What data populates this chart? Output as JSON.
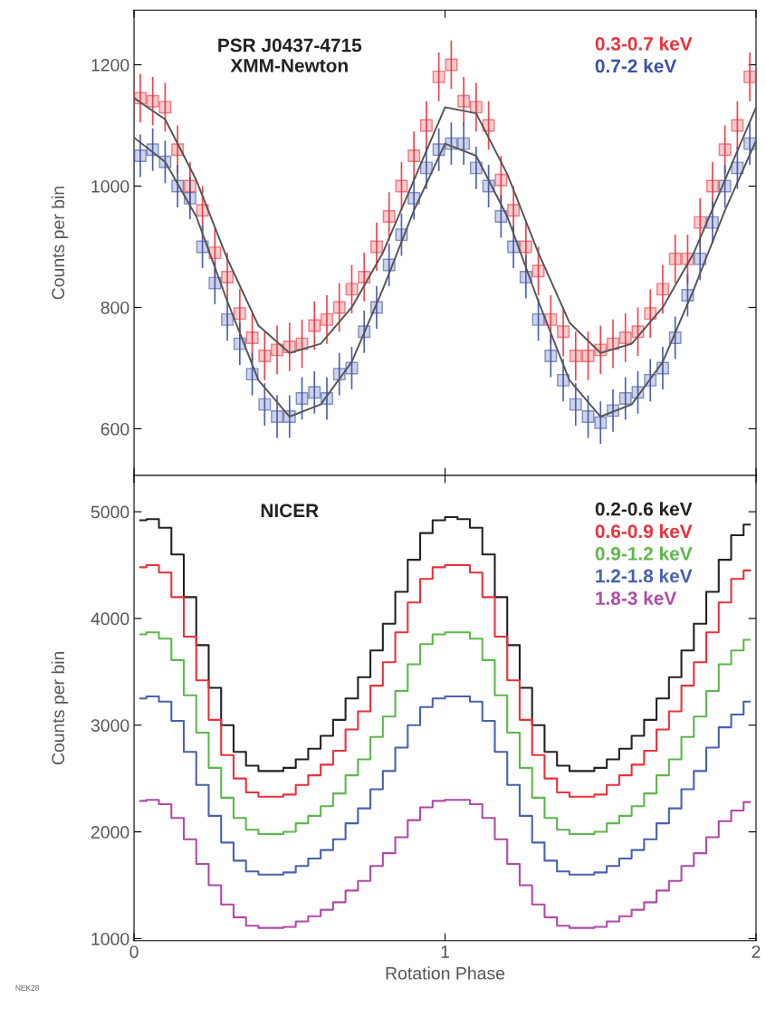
{
  "chart_data": [
    {
      "type": "scatter",
      "ylabel": "Counts per bin",
      "xlim": [
        0,
        2
      ],
      "ylim": [
        523,
        1290
      ],
      "xticks": [
        0,
        1,
        2
      ],
      "yticks": [
        600,
        800,
        1000,
        1200
      ],
      "tick_labels": "y",
      "grid": false,
      "legend": "top right",
      "annotations": [
        "PSR J0437-4715\nXMM-Newton"
      ],
      "series": [
        {
          "name": "0.3-0.7 keV",
          "color": "#e8323c",
          "marker": "square",
          "x": [
            0.02,
            0.06,
            0.1,
            0.14,
            0.18,
            0.22,
            0.26,
            0.3,
            0.34,
            0.38,
            0.42,
            0.46,
            0.5,
            0.54,
            0.58,
            0.62,
            0.66,
            0.7,
            0.74,
            0.78,
            0.82,
            0.86,
            0.9,
            0.94,
            0.98,
            1.02,
            1.06,
            1.1,
            1.14,
            1.18,
            1.22,
            1.26,
            1.3,
            1.34,
            1.38,
            1.42,
            1.46,
            1.5,
            1.54,
            1.58,
            1.62,
            1.66,
            1.7,
            1.74,
            1.78,
            1.82,
            1.86,
            1.9,
            1.94,
            1.98
          ],
          "values": [
            1145,
            1140,
            1130,
            1060,
            1000,
            960,
            890,
            850,
            790,
            750,
            720,
            730,
            735,
            740,
            770,
            780,
            800,
            830,
            850,
            900,
            950,
            1000,
            1050,
            1100,
            1180,
            1200,
            1140,
            1130,
            1100,
            1010,
            960,
            900,
            860,
            780,
            760,
            720,
            720,
            730,
            740,
            750,
            760,
            790,
            830,
            880,
            880,
            940,
            1000,
            1060,
            1100,
            1180
          ],
          "errors": [
            40,
            40,
            40,
            40,
            40,
            40,
            40,
            40,
            40,
            40,
            40,
            40,
            40,
            40,
            40,
            40,
            40,
            40,
            40,
            40,
            40,
            40,
            40,
            40,
            40,
            40,
            40,
            40,
            40,
            40,
            40,
            40,
            40,
            40,
            40,
            40,
            40,
            40,
            40,
            40,
            40,
            40,
            40,
            40,
            40,
            40,
            40,
            40,
            40,
            40
          ]
        },
        {
          "name": "0.7-2 keV",
          "color": "#3c50a8",
          "marker": "square",
          "x": [
            0.02,
            0.06,
            0.1,
            0.14,
            0.18,
            0.22,
            0.26,
            0.3,
            0.34,
            0.38,
            0.42,
            0.46,
            0.5,
            0.54,
            0.58,
            0.62,
            0.66,
            0.7,
            0.74,
            0.78,
            0.82,
            0.86,
            0.9,
            0.94,
            0.98,
            1.02,
            1.06,
            1.1,
            1.14,
            1.18,
            1.22,
            1.26,
            1.3,
            1.34,
            1.38,
            1.42,
            1.46,
            1.5,
            1.54,
            1.58,
            1.62,
            1.66,
            1.7,
            1.74,
            1.78,
            1.82,
            1.86,
            1.9,
            1.94,
            1.98
          ],
          "values": [
            1050,
            1060,
            1040,
            1000,
            980,
            900,
            840,
            780,
            740,
            690,
            640,
            620,
            620,
            650,
            660,
            650,
            690,
            700,
            760,
            800,
            870,
            920,
            980,
            1030,
            1060,
            1070,
            1070,
            1030,
            1000,
            950,
            900,
            850,
            780,
            720,
            680,
            640,
            620,
            610,
            630,
            650,
            660,
            680,
            700,
            750,
            820,
            880,
            940,
            1000,
            1030,
            1070
          ],
          "errors": [
            35,
            35,
            35,
            35,
            35,
            35,
            35,
            35,
            35,
            35,
            35,
            35,
            35,
            35,
            35,
            35,
            35,
            35,
            35,
            35,
            35,
            35,
            35,
            35,
            35,
            35,
            35,
            35,
            35,
            35,
            35,
            35,
            35,
            35,
            35,
            35,
            35,
            35,
            35,
            35,
            35,
            35,
            35,
            35,
            35,
            35,
            35,
            35,
            35,
            35
          ]
        },
        {
          "type": "line",
          "color": "#555555",
          "x": [
            0,
            0.1,
            0.2,
            0.3,
            0.4,
            0.5,
            0.6,
            0.7,
            0.8,
            0.9,
            1.0,
            1.1,
            1.2,
            1.3,
            1.4,
            1.5,
            1.6,
            1.7,
            1.8,
            1.9,
            2.0
          ],
          "values": [
            1145,
            1110,
            1010,
            880,
            770,
            725,
            740,
            800,
            890,
            1010,
            1130,
            1120,
            1020,
            890,
            775,
            725,
            740,
            800,
            890,
            1010,
            1130
          ]
        },
        {
          "type": "line",
          "color": "#555555",
          "x": [
            0,
            0.1,
            0.2,
            0.3,
            0.4,
            0.5,
            0.6,
            0.7,
            0.8,
            0.9,
            1.0,
            1.1,
            1.2,
            1.3,
            1.4,
            1.5,
            1.6,
            1.7,
            1.8,
            1.9,
            2.0
          ],
          "values": [
            1080,
            1040,
            950,
            810,
            680,
            620,
            640,
            710,
            830,
            960,
            1070,
            1050,
            950,
            810,
            680,
            620,
            640,
            710,
            830,
            960,
            1075
          ]
        }
      ]
    },
    {
      "type": "step",
      "xlabel": "Rotation Phase",
      "ylabel": "Counts per bin",
      "xlim": [
        0,
        2
      ],
      "ylim": [
        980,
        5340
      ],
      "xticks": [
        0,
        1,
        2
      ],
      "yticks": [
        1000,
        2000,
        3000,
        4000,
        5000
      ],
      "grid": false,
      "legend": "top right",
      "annotations": [
        "NICER",
        "NEK28"
      ],
      "x": [
        0.02,
        0.06,
        0.1,
        0.14,
        0.18,
        0.22,
        0.26,
        0.3,
        0.34,
        0.38,
        0.42,
        0.46,
        0.5,
        0.54,
        0.58,
        0.62,
        0.66,
        0.7,
        0.74,
        0.78,
        0.82,
        0.86,
        0.9,
        0.94,
        0.98,
        1.02,
        1.06,
        1.1,
        1.14,
        1.18,
        1.22,
        1.26,
        1.3,
        1.34,
        1.38,
        1.42,
        1.46,
        1.5,
        1.54,
        1.58,
        1.62,
        1.66,
        1.7,
        1.74,
        1.78,
        1.82,
        1.86,
        1.9,
        1.94,
        1.98
      ],
      "series": [
        {
          "name": "0.2-0.6 keV",
          "color": "#222222",
          "values": [
            4920,
            4930,
            4850,
            4600,
            4200,
            3750,
            3350,
            3000,
            2750,
            2620,
            2570,
            2570,
            2600,
            2680,
            2780,
            2900,
            3050,
            3250,
            3450,
            3700,
            3950,
            4250,
            4550,
            4800,
            4920,
            4950,
            4930,
            4850,
            4600,
            4200,
            3750,
            3350,
            3000,
            2750,
            2620,
            2570,
            2570,
            2600,
            2680,
            2780,
            2900,
            3050,
            3250,
            3450,
            3700,
            3950,
            4250,
            4550,
            4780,
            4880
          ]
        },
        {
          "name": "0.6-0.9 keV",
          "color": "#e8323c",
          "values": [
            4480,
            4500,
            4430,
            4200,
            3830,
            3420,
            3050,
            2720,
            2500,
            2370,
            2330,
            2330,
            2350,
            2440,
            2530,
            2630,
            2760,
            2960,
            3130,
            3370,
            3590,
            3870,
            4150,
            4370,
            4480,
            4500,
            4500,
            4430,
            4200,
            3830,
            3420,
            3050,
            2720,
            2500,
            2370,
            2330,
            2330,
            2350,
            2440,
            2530,
            2630,
            2760,
            2960,
            3130,
            3370,
            3590,
            3870,
            4150,
            4370,
            4450
          ]
        },
        {
          "name": "0.9-1.2 keV",
          "color": "#5cb84a",
          "values": [
            3850,
            3870,
            3810,
            3610,
            3280,
            2930,
            2600,
            2320,
            2130,
            2020,
            1980,
            1980,
            2000,
            2080,
            2150,
            2240,
            2360,
            2530,
            2680,
            2890,
            3080,
            3320,
            3570,
            3760,
            3850,
            3870,
            3870,
            3810,
            3610,
            3280,
            2930,
            2600,
            2320,
            2130,
            2020,
            1980,
            1980,
            2000,
            2080,
            2150,
            2240,
            2360,
            2530,
            2680,
            2890,
            3080,
            3320,
            3570,
            3700,
            3800
          ]
        },
        {
          "name": "1.2-1.8 keV",
          "color": "#4a60b0",
          "values": [
            3250,
            3270,
            3220,
            3040,
            2750,
            2440,
            2150,
            1900,
            1730,
            1630,
            1600,
            1600,
            1620,
            1680,
            1750,
            1830,
            1930,
            2080,
            2220,
            2400,
            2570,
            2790,
            3000,
            3170,
            3250,
            3270,
            3270,
            3220,
            3040,
            2750,
            2440,
            2150,
            1900,
            1730,
            1630,
            1600,
            1600,
            1620,
            1680,
            1750,
            1830,
            1930,
            2080,
            2220,
            2400,
            2570,
            2790,
            2980,
            3100,
            3220
          ]
        },
        {
          "name": "1.8-3 keV",
          "color": "#b04aa8",
          "values": [
            2290,
            2300,
            2260,
            2130,
            1930,
            1700,
            1500,
            1320,
            1200,
            1120,
            1100,
            1100,
            1110,
            1160,
            1210,
            1270,
            1340,
            1450,
            1540,
            1680,
            1800,
            1950,
            2110,
            2230,
            2290,
            2300,
            2300,
            2260,
            2130,
            1930,
            1700,
            1500,
            1320,
            1200,
            1120,
            1100,
            1100,
            1110,
            1160,
            1210,
            1270,
            1340,
            1450,
            1540,
            1680,
            1800,
            1950,
            2100,
            2200,
            2280
          ]
        }
      ]
    }
  ]
}
